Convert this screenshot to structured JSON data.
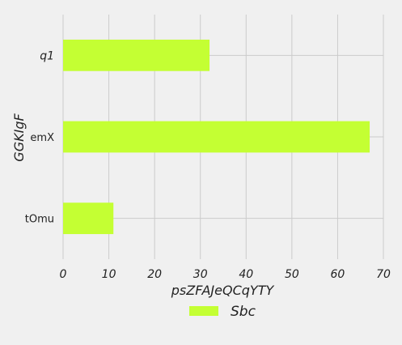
{
  "chart_data": {
    "type": "bar",
    "orientation": "horizontal",
    "categories": [
      "q1",
      "emX",
      "tOmu"
    ],
    "series": [
      {
        "name": "Sbc",
        "values": [
          32,
          67,
          11
        ],
        "color": "#c4ff33"
      }
    ],
    "xlabel": "psZFAJeQCqYTY",
    "ylabel": "GGKIgF",
    "xlim": [
      0,
      70
    ],
    "xticks": [
      "0",
      "10",
      "20",
      "30",
      "40",
      "50",
      "60",
      "70"
    ],
    "grid": true,
    "legend_position": "bottom-center"
  },
  "colors": {
    "background": "#f0f0f0",
    "grid": "#cbcbcb",
    "bar": "#c4ff33"
  }
}
